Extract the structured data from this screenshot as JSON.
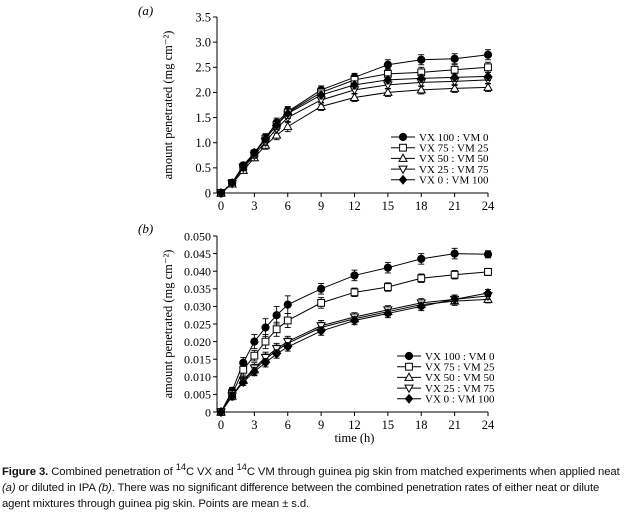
{
  "chart_data": [
    {
      "panel_label": "(a)",
      "type": "line",
      "ylabel": "amount penetrated (mg cm⁻²)",
      "xlabel": "",
      "xlim": [
        0,
        24
      ],
      "ylim": [
        0,
        3.5
      ],
      "xticks": [
        "0",
        "3",
        "6",
        "9",
        "12",
        "15",
        "18",
        "21",
        "24"
      ],
      "yticks": [
        "0",
        "0.5",
        "1.0",
        "1.5",
        "2.0",
        "2.5",
        "3.0",
        "3.5"
      ],
      "legend_position": "bottom-right",
      "series": [
        {
          "name": "VX 100 : VM 0",
          "marker": "filled-circle",
          "x": [
            0,
            1,
            2,
            3,
            4,
            5,
            6,
            9,
            12,
            15,
            18,
            21,
            24
          ],
          "y": [
            0,
            0.2,
            0.55,
            0.8,
            1.1,
            1.4,
            1.62,
            2.05,
            2.3,
            2.55,
            2.65,
            2.67,
            2.75
          ],
          "err": [
            0,
            0.04,
            0.05,
            0.06,
            0.08,
            0.09,
            0.1,
            0.08,
            0.08,
            0.1,
            0.1,
            0.1,
            0.1
          ]
        },
        {
          "name": "VX 75 : VM 25",
          "marker": "open-square",
          "x": [
            0,
            1,
            2,
            3,
            4,
            5,
            6,
            9,
            12,
            15,
            18,
            21,
            24
          ],
          "y": [
            0,
            0.2,
            0.52,
            0.78,
            1.08,
            1.35,
            1.6,
            2.0,
            2.25,
            2.37,
            2.4,
            2.45,
            2.5
          ],
          "err": [
            0,
            0.04,
            0.05,
            0.06,
            0.08,
            0.09,
            0.1,
            0.08,
            0.08,
            0.1,
            0.1,
            0.1,
            0.1
          ]
        },
        {
          "name": "VX 50 : VM 50",
          "marker": "open-triangle-up",
          "x": [
            0,
            1,
            2,
            3,
            4,
            5,
            6,
            9,
            12,
            15,
            18,
            21,
            24
          ],
          "y": [
            0,
            0.18,
            0.45,
            0.7,
            0.95,
            1.15,
            1.32,
            1.72,
            1.9,
            2.0,
            2.05,
            2.08,
            2.1
          ],
          "err": [
            0,
            0.04,
            0.05,
            0.06,
            0.08,
            0.09,
            0.1,
            0.08,
            0.08,
            0.08,
            0.08,
            0.08,
            0.08
          ]
        },
        {
          "name": "VX 25 : VM 75",
          "marker": "open-triangle-down",
          "x": [
            0,
            1,
            2,
            3,
            4,
            5,
            6,
            9,
            12,
            15,
            18,
            21,
            24
          ],
          "y": [
            0,
            0.19,
            0.5,
            0.75,
            1.02,
            1.28,
            1.5,
            1.85,
            2.05,
            2.15,
            2.2,
            2.22,
            2.25
          ],
          "err": [
            0,
            0.04,
            0.05,
            0.06,
            0.08,
            0.09,
            0.1,
            0.08,
            0.08,
            0.08,
            0.08,
            0.08,
            0.08
          ]
        },
        {
          "name": "VX 0 : VM 100",
          "marker": "filled-diamond",
          "x": [
            0,
            1,
            2,
            3,
            4,
            5,
            6,
            9,
            12,
            15,
            18,
            21,
            24
          ],
          "y": [
            0,
            0.2,
            0.52,
            0.8,
            1.08,
            1.35,
            1.58,
            1.95,
            2.15,
            2.25,
            2.28,
            2.3,
            2.32
          ],
          "err": [
            0,
            0.04,
            0.05,
            0.06,
            0.08,
            0.09,
            0.1,
            0.08,
            0.08,
            0.08,
            0.08,
            0.08,
            0.08
          ]
        }
      ]
    },
    {
      "panel_label": "(b)",
      "type": "line",
      "ylabel": "amount penetrated (mg cm⁻²)",
      "xlabel": "time (h)",
      "xlim": [
        0,
        24
      ],
      "ylim": [
        0,
        0.05
      ],
      "xticks": [
        "0",
        "3",
        "6",
        "9",
        "12",
        "15",
        "18",
        "21",
        "24"
      ],
      "yticks": [
        "0",
        "0.005",
        "0.010",
        "0.015",
        "0.020",
        "0.025",
        "0.030",
        "0.035",
        "0.040",
        "0.045",
        "0.050"
      ],
      "legend_position": "bottom-right",
      "series": [
        {
          "name": "VX 100 : VM 0",
          "marker": "filled-circle",
          "x": [
            0,
            1,
            2,
            3,
            4,
            5,
            6,
            9,
            12,
            15,
            18,
            21,
            24
          ],
          "y": [
            0,
            0.006,
            0.014,
            0.02,
            0.024,
            0.0275,
            0.0305,
            0.035,
            0.0388,
            0.041,
            0.0435,
            0.045,
            0.0448
          ],
          "err": [
            0,
            0.001,
            0.0015,
            0.002,
            0.0025,
            0.0025,
            0.0025,
            0.0015,
            0.0015,
            0.0015,
            0.0015,
            0.0015,
            0.001
          ]
        },
        {
          "name": "VX 75 : VM 25",
          "marker": "open-square",
          "x": [
            0,
            1,
            2,
            3,
            4,
            5,
            6,
            9,
            12,
            15,
            18,
            21,
            24
          ],
          "y": [
            0,
            0.005,
            0.012,
            0.016,
            0.02,
            0.0235,
            0.026,
            0.031,
            0.034,
            0.0355,
            0.038,
            0.039,
            0.0398
          ],
          "err": [
            0,
            0.001,
            0.0015,
            0.0015,
            0.002,
            0.002,
            0.002,
            0.0015,
            0.0012,
            0.0012,
            0.0012,
            0.0012,
            0.001
          ]
        },
        {
          "name": "VX 50 : VM 50",
          "marker": "open-triangle-up",
          "x": [
            0,
            1,
            2,
            3,
            4,
            5,
            6,
            9,
            12,
            15,
            18,
            21,
            24
          ],
          "y": [
            0,
            0.0045,
            0.009,
            0.012,
            0.015,
            0.0175,
            0.0195,
            0.024,
            0.0265,
            0.0285,
            0.0305,
            0.0315,
            0.032
          ],
          "err": [
            0,
            0.001,
            0.001,
            0.0015,
            0.0015,
            0.0015,
            0.0015,
            0.0015,
            0.0012,
            0.0012,
            0.0012,
            0.0012,
            0.001
          ]
        },
        {
          "name": "VX 25 : VM 75",
          "marker": "open-triangle-down",
          "x": [
            0,
            1,
            2,
            3,
            4,
            5,
            6,
            9,
            12,
            15,
            18,
            21,
            24
          ],
          "y": [
            0,
            0.0045,
            0.009,
            0.0125,
            0.0155,
            0.018,
            0.02,
            0.0245,
            0.027,
            0.029,
            0.031,
            0.032,
            0.033
          ],
          "err": [
            0,
            0.001,
            0.001,
            0.0015,
            0.0015,
            0.0015,
            0.0015,
            0.0015,
            0.0012,
            0.0012,
            0.0012,
            0.0012,
            0.001
          ]
        },
        {
          "name": "VX 0 : VM 100",
          "marker": "filled-diamond",
          "x": [
            0,
            1,
            2,
            3,
            4,
            5,
            6,
            9,
            12,
            15,
            18,
            21,
            24
          ],
          "y": [
            0,
            0.0045,
            0.0085,
            0.0115,
            0.014,
            0.0165,
            0.0185,
            0.023,
            0.026,
            0.028,
            0.03,
            0.032,
            0.0338
          ],
          "err": [
            0,
            0.001,
            0.001,
            0.0012,
            0.0012,
            0.0012,
            0.0012,
            0.0012,
            0.0012,
            0.0012,
            0.0012,
            0.0012,
            0.001
          ]
        }
      ]
    }
  ],
  "caption": {
    "label": "Figure 3.",
    "p1": " Combined penetration of ",
    "sup1": "14",
    "p2": "C VX and ",
    "sup2": "14",
    "p3": "C VM through guinea pig skin from matched experiments when applied neat",
    "a": "(a)",
    "p4": " or diluted in IPA ",
    "b": "(b)",
    "p5": ". There was no significant difference between the combined penetration rates of either neat or dilute agent mixtures through guinea pig skin. Points are mean ± s.d."
  }
}
